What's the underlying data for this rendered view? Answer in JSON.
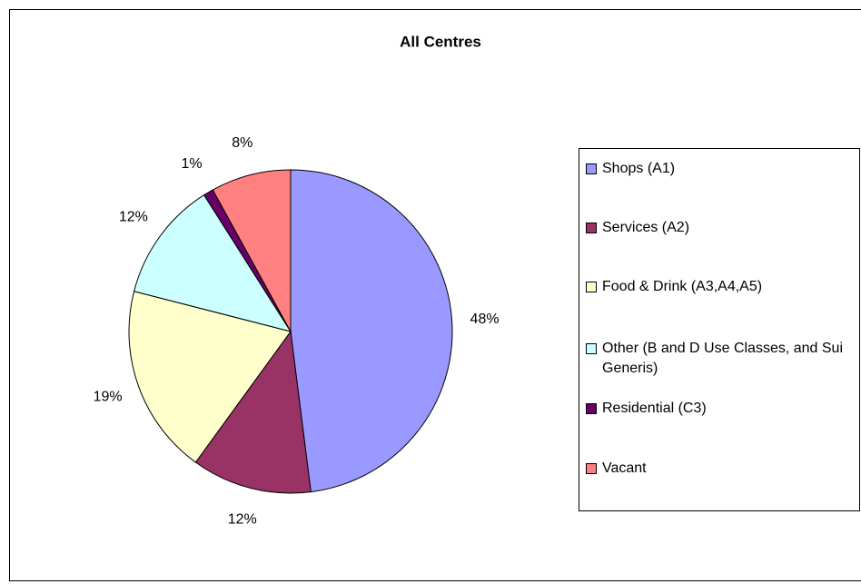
{
  "chart_data": {
    "type": "pie",
    "title": "All Centres",
    "categories": [
      "Shops (A1)",
      "Services (A2)",
      "Food & Drink (A3,A4,A5)",
      "Other (B and D Use Classes, and Sui Generis)",
      "Residential (C3)",
      "Vacant"
    ],
    "values": [
      48,
      12,
      19,
      12,
      1,
      8
    ],
    "value_labels": [
      "48%",
      "12%",
      "19%",
      "12%",
      "1%",
      "8%"
    ],
    "colors": [
      "#9999ff",
      "#993366",
      "#ffffcc",
      "#ccffff",
      "#660066",
      "#ff8080"
    ],
    "legend": "right"
  }
}
